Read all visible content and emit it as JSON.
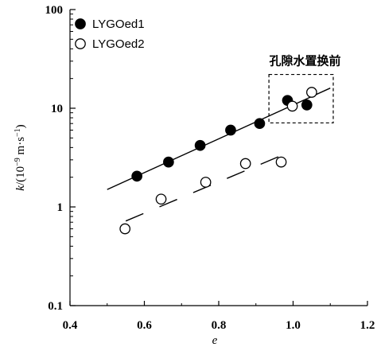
{
  "chart_data": {
    "type": "scatter",
    "x_axis": {
      "label": "e",
      "range": [
        0.4,
        1.2
      ],
      "ticks": [
        0.4,
        0.6,
        0.8,
        1.0,
        1.2
      ],
      "tick_labels": [
        "0.4",
        "0.6",
        "0.8",
        "1.0",
        "1.2"
      ]
    },
    "y_axis": {
      "label": "k/(10⁻⁹ m·s⁻¹)",
      "label_parts": [
        "k",
        "/(10",
        "−9",
        " m·s",
        "−1",
        ")"
      ],
      "scale": "log",
      "range": [
        0.1,
        100
      ],
      "ticks": [
        0.1,
        1,
        10,
        100
      ],
      "tick_labels": [
        "0.1",
        "1",
        "10",
        "100"
      ]
    },
    "grid": false,
    "legend": {
      "placement": "top-left"
    },
    "series": [
      {
        "name": "LYGOed1",
        "marker": "filled-circle",
        "color": "#000000",
        "points": [
          {
            "x": 0.58,
            "y": 2.05
          },
          {
            "x": 0.665,
            "y": 2.85
          },
          {
            "x": 0.75,
            "y": 4.2
          },
          {
            "x": 0.832,
            "y": 6.0
          },
          {
            "x": 0.91,
            "y": 7.0
          },
          {
            "x": 0.985,
            "y": 12.0
          },
          {
            "x": 1.037,
            "y": 10.8
          }
        ],
        "fit_line": {
          "style": "solid",
          "from": {
            "x": 0.5,
            "y": 1.5
          },
          "to": {
            "x": 1.1,
            "y": 16.0
          }
        }
      },
      {
        "name": "LYGOed2",
        "marker": "open-circle",
        "color": "#000000",
        "points": [
          {
            "x": 0.548,
            "y": 0.6
          },
          {
            "x": 0.645,
            "y": 1.2
          },
          {
            "x": 0.765,
            "y": 1.78
          },
          {
            "x": 0.872,
            "y": 2.75
          },
          {
            "x": 0.968,
            "y": 2.85
          },
          {
            "x": 0.998,
            "y": 10.5
          },
          {
            "x": 1.05,
            "y": 14.5
          }
        ],
        "fit_line": {
          "style": "dashed",
          "from": {
            "x": 0.55,
            "y": 0.72
          },
          "to": {
            "x": 0.975,
            "y": 3.4
          }
        }
      }
    ],
    "annotations": [
      {
        "text": "孔隙水置换前",
        "box": {
          "x": [
            0.935,
            1.108
          ],
          "y": [
            7.1,
            22.0
          ]
        },
        "style": "dashed"
      }
    ]
  }
}
